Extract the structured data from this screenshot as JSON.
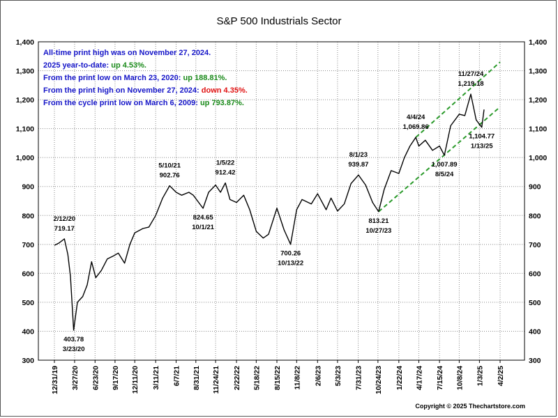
{
  "chart_data": {
    "type": "line",
    "title": "S&P 500 Industrials Sector",
    "xlabel": "",
    "ylabel": "",
    "ylim": [
      300,
      1400
    ],
    "yticks": [
      "300",
      "400",
      "500",
      "600",
      "700",
      "800",
      "900",
      "1,000",
      "1,100",
      "1,200",
      "1,300",
      "1,400"
    ],
    "xticks": [
      "12/31/19",
      "3/27/20",
      "6/23/20",
      "9/17/20",
      "12/11/20",
      "3/11/21",
      "6/7/21",
      "8/31/21",
      "11/24/21",
      "2/22/22",
      "5/18/22",
      "8/15/22",
      "11/8/22",
      "2/6/23",
      "5/3/23",
      "7/31/23",
      "10/24/23",
      "1/22/24",
      "4/17/24",
      "7/15/24",
      "10/8/24",
      "1/3/25",
      "4/2/25"
    ],
    "grid": true,
    "series": [
      {
        "values": [
          [
            "12/31/19",
            697
          ],
          [
            "1/20/20",
            705
          ],
          [
            "2/12/20",
            719.17
          ],
          [
            "2/27/20",
            665
          ],
          [
            "3/9/20",
            590
          ],
          [
            "3/23/20",
            403.78
          ],
          [
            "4/8/20",
            500
          ],
          [
            "5/1/20",
            520
          ],
          [
            "5/20/20",
            560
          ],
          [
            "6/8/20",
            640
          ],
          [
            "6/26/20",
            585
          ],
          [
            "7/20/20",
            610
          ],
          [
            "8/15/20",
            650
          ],
          [
            "9/10/20",
            660
          ],
          [
            "10/1/20",
            670
          ],
          [
            "10/28/20",
            635
          ],
          [
            "11/20/20",
            700
          ],
          [
            "12/11/20",
            740
          ],
          [
            "1/15/21",
            755
          ],
          [
            "2/10/21",
            760
          ],
          [
            "3/11/21",
            800
          ],
          [
            "4/10/21",
            860
          ],
          [
            "5/10/21",
            902.76
          ],
          [
            "6/7/21",
            880
          ],
          [
            "7/1/21",
            870
          ],
          [
            "8/1/21",
            880
          ],
          [
            "8/20/21",
            870
          ],
          [
            "10/1/21",
            824.65
          ],
          [
            "10/25/21",
            880
          ],
          [
            "11/24/21",
            905
          ],
          [
            "12/15/21",
            880
          ],
          [
            "1/5/22",
            912.42
          ],
          [
            "1/25/22",
            855
          ],
          [
            "2/22/22",
            845
          ],
          [
            "3/25/22",
            870
          ],
          [
            "4/20/22",
            820
          ],
          [
            "5/18/22",
            745
          ],
          [
            "6/17/22",
            722
          ],
          [
            "7/10/22",
            735
          ],
          [
            "8/15/22",
            825
          ],
          [
            "9/15/22",
            750
          ],
          [
            "10/13/22",
            700.26
          ],
          [
            "11/8/22",
            820
          ],
          [
            "12/1/22",
            855
          ],
          [
            "1/10/23",
            840
          ],
          [
            "2/6/23",
            875
          ],
          [
            "3/15/23",
            820
          ],
          [
            "4/5/23",
            860
          ],
          [
            "5/3/23",
            815
          ],
          [
            "6/1/23",
            840
          ],
          [
            "6/30/23",
            910
          ],
          [
            "8/1/23",
            939.87
          ],
          [
            "9/1/23",
            905
          ],
          [
            "10/1/23",
            845
          ],
          [
            "10/27/23",
            813.21
          ],
          [
            "11/20/23",
            890
          ],
          [
            "12/20/23",
            955
          ],
          [
            "1/22/24",
            945
          ],
          [
            "2/15/24",
            1000
          ],
          [
            "3/10/24",
            1040
          ],
          [
            "4/4/24",
            1069.86
          ],
          [
            "4/17/24",
            1040
          ],
          [
            "5/15/24",
            1060
          ],
          [
            "6/15/24",
            1025
          ],
          [
            "7/15/24",
            1040
          ],
          [
            "8/5/24",
            1007.89
          ],
          [
            "9/1/24",
            1110
          ],
          [
            "10/8/24",
            1150
          ],
          [
            "11/1/24",
            1145
          ],
          [
            "11/27/24",
            1219.18
          ],
          [
            "12/20/24",
            1130
          ],
          [
            "1/13/25",
            1104.77
          ],
          [
            "1/23/25",
            1166
          ]
        ]
      }
    ],
    "annotations": [
      {
        "date": "2/12/20",
        "value": "719.17"
      },
      {
        "date": "3/23/20",
        "value": "403.78"
      },
      {
        "date": "5/10/21",
        "value": "902.76"
      },
      {
        "date": "10/1/21",
        "value": "824.65"
      },
      {
        "date": "1/5/22",
        "value": "912.42"
      },
      {
        "date": "10/13/22",
        "value": "700.26"
      },
      {
        "date": "8/1/23",
        "value": "939.87"
      },
      {
        "date": "10/27/23",
        "value": "813.21"
      },
      {
        "date": "4/4/24",
        "value": "1,069.86"
      },
      {
        "date": "8/5/24",
        "value": "1,007.89"
      },
      {
        "date": "11/27/24",
        "value": "1,219.18"
      },
      {
        "date": "1/13/25",
        "value": "1,104.77"
      }
    ],
    "trend_channel": {
      "color": "#2a9a2a",
      "upper": [
        [
          "4/4/24",
          1069.86
        ],
        [
          "4/2/25",
          1330
        ]
      ],
      "lower": [
        [
          "10/27/23",
          813.21
        ],
        [
          "4/2/25",
          1175
        ]
      ]
    },
    "notes": [
      {
        "text": "All-time print high was on November 27, 2024.",
        "highlight": "",
        "highlight_color": ""
      },
      {
        "text": "2025 year-to-date: ",
        "highlight": "up 4.53%.",
        "highlight_color": "#1a8a1a"
      },
      {
        "text": "From the print low on March 23, 2020: ",
        "highlight": "up 188.81%.",
        "highlight_color": "#1a8a1a"
      },
      {
        "text": "From the print high on November 27, 2024: ",
        "highlight": "down 4.35%.",
        "highlight_color": "#e01010"
      },
      {
        "text": "From the cycle print low on March 6, 2009: ",
        "highlight": "up 793.87%.",
        "highlight_color": "#1a8a1a"
      }
    ],
    "notes_color": "#1515c8",
    "copyright": "Copyright © 2025 Thechartstore.com"
  }
}
